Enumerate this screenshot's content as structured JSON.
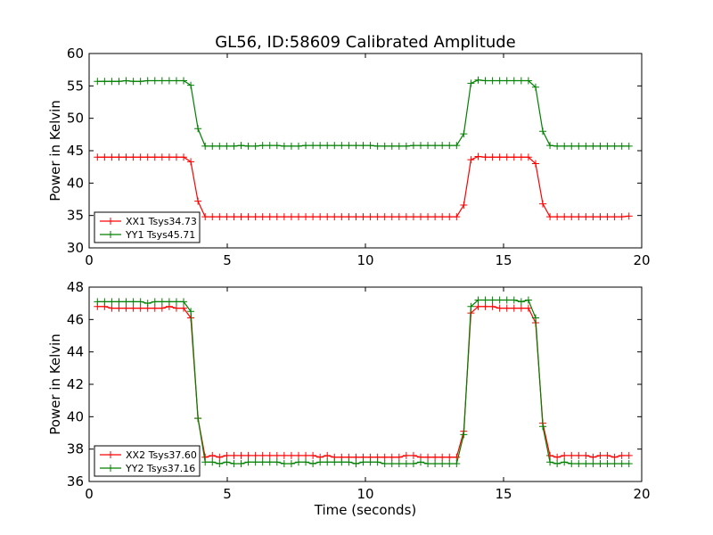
{
  "chart_data": [
    {
      "type": "line",
      "title": "GL56, ID:58609 Calibrated Amplitude",
      "xlabel": "",
      "ylabel": "Power in Kelvin",
      "xlim": [
        0,
        20
      ],
      "ylim": [
        30,
        60
      ],
      "xticks": [
        0,
        5,
        10,
        15,
        20
      ],
      "yticks": [
        30,
        35,
        40,
        45,
        50,
        55,
        60
      ],
      "grid": false,
      "legend_position": "bottom-left",
      "x": [
        0.3,
        0.56,
        0.82,
        1.08,
        1.34,
        1.6,
        1.86,
        2.12,
        2.38,
        2.64,
        2.9,
        3.16,
        3.42,
        3.68,
        3.94,
        4.2,
        4.46,
        4.72,
        4.98,
        5.24,
        5.5,
        5.76,
        6.02,
        6.28,
        6.54,
        6.8,
        7.06,
        7.32,
        7.58,
        7.84,
        8.1,
        8.36,
        8.62,
        8.88,
        9.14,
        9.4,
        9.66,
        9.92,
        10.18,
        10.44,
        10.7,
        10.96,
        11.22,
        11.48,
        11.74,
        12.0,
        12.26,
        12.52,
        12.78,
        13.04,
        13.3,
        13.56,
        13.82,
        14.08,
        14.34,
        14.6,
        14.86,
        15.12,
        15.38,
        15.64,
        15.9,
        16.16,
        16.42,
        16.68,
        16.94,
        17.2,
        17.46,
        17.72,
        17.98,
        18.24,
        18.5,
        18.76,
        19.02,
        19.28,
        19.54
      ],
      "series": [
        {
          "name": "XX1 Tsys34.73",
          "color": "#ff0000",
          "values": [
            44.0,
            44.0,
            44.0,
            44.0,
            44.0,
            44.0,
            44.0,
            44.0,
            44.0,
            44.0,
            44.0,
            44.0,
            44.0,
            43.3,
            37.2,
            34.8,
            34.8,
            34.8,
            34.8,
            34.8,
            34.8,
            34.8,
            34.8,
            34.8,
            34.8,
            34.8,
            34.8,
            34.8,
            34.8,
            34.8,
            34.8,
            34.8,
            34.8,
            34.8,
            34.8,
            34.8,
            34.8,
            34.8,
            34.8,
            34.8,
            34.8,
            34.8,
            34.8,
            34.8,
            34.8,
            34.8,
            34.8,
            34.8,
            34.8,
            34.8,
            34.8,
            36.6,
            43.6,
            44.1,
            44.0,
            44.0,
            44.0,
            44.0,
            44.0,
            44.0,
            44.0,
            43.0,
            36.8,
            34.8,
            34.8,
            34.8,
            34.8,
            34.8,
            34.8,
            34.8,
            34.8,
            34.8,
            34.8,
            34.8,
            34.9
          ]
        },
        {
          "name": "YY1 Tsys45.71",
          "color": "#008000",
          "values": [
            55.7,
            55.7,
            55.7,
            55.7,
            55.8,
            55.7,
            55.7,
            55.8,
            55.8,
            55.8,
            55.8,
            55.8,
            55.8,
            55.1,
            48.4,
            45.7,
            45.7,
            45.7,
            45.7,
            45.7,
            45.8,
            45.7,
            45.7,
            45.8,
            45.8,
            45.8,
            45.7,
            45.7,
            45.7,
            45.8,
            45.8,
            45.8,
            45.8,
            45.8,
            45.8,
            45.8,
            45.8,
            45.8,
            45.8,
            45.7,
            45.7,
            45.7,
            45.7,
            45.7,
            45.8,
            45.8,
            45.8,
            45.8,
            45.8,
            45.8,
            45.8,
            47.6,
            55.4,
            55.9,
            55.8,
            55.8,
            55.8,
            55.8,
            55.8,
            55.8,
            55.8,
            54.8,
            48.0,
            45.8,
            45.7,
            45.7,
            45.7,
            45.7,
            45.7,
            45.7,
            45.7,
            45.7,
            45.7,
            45.7,
            45.7
          ]
        }
      ]
    },
    {
      "type": "line",
      "title": "",
      "xlabel": "Time (seconds)",
      "ylabel": "Power in Kelvin",
      "xlim": [
        0,
        20
      ],
      "ylim": [
        36,
        48
      ],
      "xticks": [
        0,
        5,
        10,
        15,
        20
      ],
      "yticks": [
        36,
        38,
        40,
        42,
        44,
        46,
        48
      ],
      "grid": false,
      "legend_position": "bottom-left",
      "x": [
        0.3,
        0.56,
        0.82,
        1.08,
        1.34,
        1.6,
        1.86,
        2.12,
        2.38,
        2.64,
        2.9,
        3.16,
        3.42,
        3.68,
        3.94,
        4.2,
        4.46,
        4.72,
        4.98,
        5.24,
        5.5,
        5.76,
        6.02,
        6.28,
        6.54,
        6.8,
        7.06,
        7.32,
        7.58,
        7.84,
        8.1,
        8.36,
        8.62,
        8.88,
        9.14,
        9.4,
        9.66,
        9.92,
        10.18,
        10.44,
        10.7,
        10.96,
        11.22,
        11.48,
        11.74,
        12.0,
        12.26,
        12.52,
        12.78,
        13.04,
        13.3,
        13.56,
        13.82,
        14.08,
        14.34,
        14.6,
        14.86,
        15.12,
        15.38,
        15.64,
        15.9,
        16.16,
        16.42,
        16.68,
        16.94,
        17.2,
        17.46,
        17.72,
        17.98,
        18.24,
        18.5,
        18.76,
        19.02,
        19.28,
        19.54
      ],
      "series": [
        {
          "name": "XX2 Tsys37.60",
          "color": "#ff0000",
          "values": [
            46.8,
            46.8,
            46.7,
            46.7,
            46.7,
            46.7,
            46.7,
            46.7,
            46.7,
            46.7,
            46.8,
            46.7,
            46.7,
            46.1,
            39.9,
            37.5,
            37.6,
            37.5,
            37.6,
            37.6,
            37.6,
            37.6,
            37.6,
            37.6,
            37.6,
            37.6,
            37.6,
            37.6,
            37.6,
            37.6,
            37.6,
            37.5,
            37.6,
            37.5,
            37.5,
            37.5,
            37.5,
            37.5,
            37.5,
            37.5,
            37.5,
            37.5,
            37.5,
            37.6,
            37.6,
            37.5,
            37.5,
            37.5,
            37.5,
            37.5,
            37.5,
            39.1,
            46.4,
            46.8,
            46.8,
            46.8,
            46.7,
            46.7,
            46.7,
            46.7,
            46.7,
            45.8,
            39.6,
            37.6,
            37.5,
            37.6,
            37.6,
            37.6,
            37.6,
            37.5,
            37.6,
            37.6,
            37.5,
            37.6,
            37.6
          ]
        },
        {
          "name": "YY2 Tsys37.16",
          "color": "#008000",
          "values": [
            47.1,
            47.1,
            47.1,
            47.1,
            47.1,
            47.1,
            47.1,
            47.0,
            47.1,
            47.1,
            47.1,
            47.1,
            47.1,
            46.5,
            39.9,
            37.2,
            37.2,
            37.1,
            37.2,
            37.1,
            37.1,
            37.2,
            37.2,
            37.2,
            37.2,
            37.2,
            37.1,
            37.1,
            37.2,
            37.2,
            37.1,
            37.2,
            37.2,
            37.2,
            37.2,
            37.2,
            37.1,
            37.2,
            37.2,
            37.2,
            37.1,
            37.1,
            37.1,
            37.1,
            37.1,
            37.2,
            37.1,
            37.1,
            37.1,
            37.1,
            37.1,
            38.9,
            46.8,
            47.2,
            47.2,
            47.2,
            47.2,
            47.2,
            47.2,
            47.1,
            47.2,
            46.1,
            39.4,
            37.2,
            37.1,
            37.2,
            37.1,
            37.1,
            37.1,
            37.1,
            37.1,
            37.1,
            37.1,
            37.1,
            37.1
          ]
        }
      ]
    }
  ]
}
